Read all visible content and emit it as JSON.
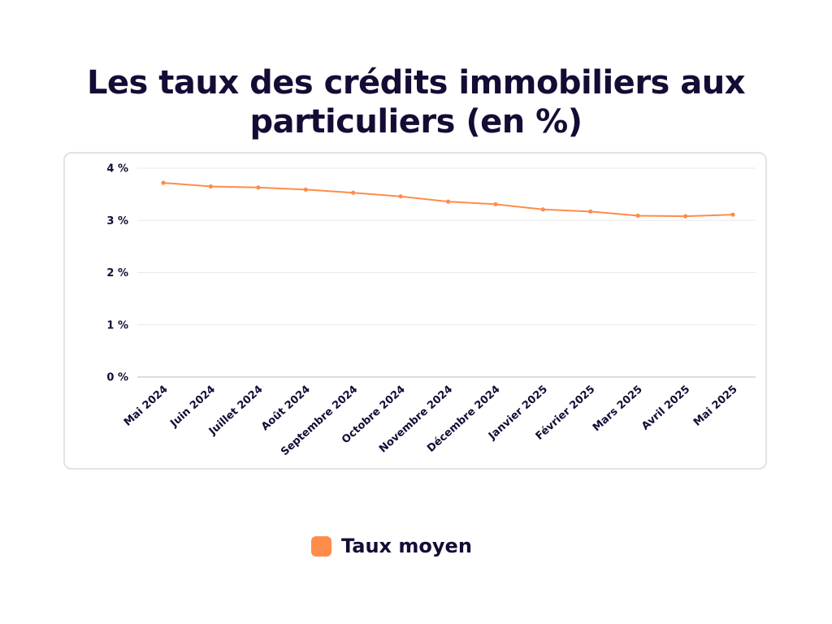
{
  "colors": {
    "series": "#ff8c4a",
    "text": "#160b35",
    "grid": "#e8e8e8",
    "axis": "#c8c8c8"
  },
  "chart_data": {
    "type": "line",
    "title": "Les taux des crédits immobiliers aux particuliers (en %)",
    "categories": [
      "Mai 2024",
      "Juin 2024",
      "Juillet 2024",
      "Août 2024",
      "Septembre 2024",
      "Octobre 2024",
      "Novembre 2024",
      "Décembre 2024",
      "Janvier 2025",
      "Février 2025",
      "Mars 2025",
      "Avril 2025",
      "Mai 2025"
    ],
    "series": [
      {
        "name": "Taux moyen",
        "values": [
          3.72,
          3.65,
          3.63,
          3.59,
          3.53,
          3.46,
          3.36,
          3.31,
          3.21,
          3.17,
          3.09,
          3.08,
          3.11
        ]
      }
    ],
    "yticks": [
      0,
      1,
      2,
      3,
      4
    ],
    "ytick_labels": [
      "0 %",
      "1 %",
      "2 %",
      "3 %",
      "4 %"
    ],
    "ylim": [
      0,
      4
    ],
    "grid": true,
    "legend_position": "bottom"
  }
}
